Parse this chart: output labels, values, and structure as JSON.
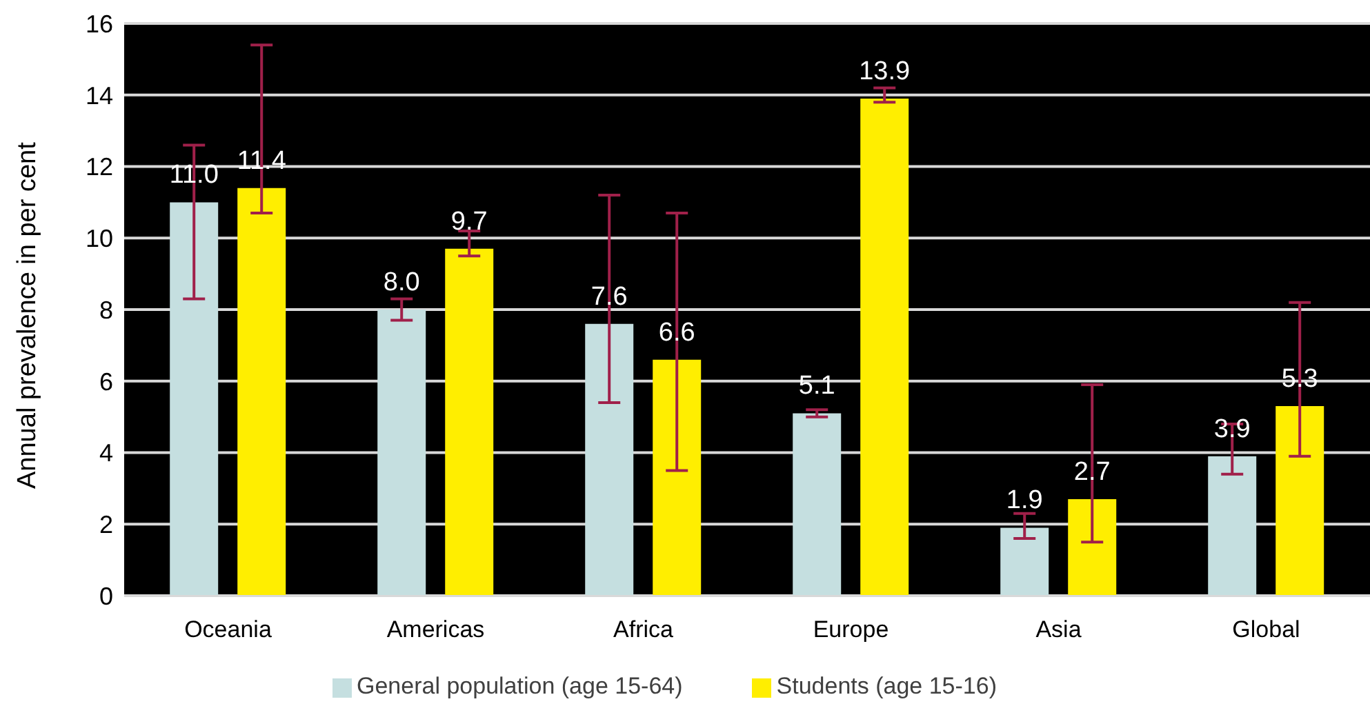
{
  "chart_data": {
    "type": "bar",
    "ylabel": "Annual prevalence in per cent",
    "categories": [
      "Oceania",
      "Americas",
      "Africa",
      "Europe",
      "Asia",
      "Global"
    ],
    "series": [
      {
        "name": "General population (age 15-64)",
        "color": "#c5dfe0",
        "values": [
          11.0,
          8.0,
          7.6,
          5.1,
          1.9,
          3.9
        ],
        "value_labels": [
          "11.0",
          "8.0",
          "7.6",
          "5.1",
          "1.9",
          "3.9"
        ],
        "errors": [
          [
            8.3,
            12.6
          ],
          [
            7.7,
            8.3
          ],
          [
            5.4,
            11.2
          ],
          [
            5.0,
            5.2
          ],
          [
            1.6,
            2.3
          ],
          [
            3.4,
            4.8
          ]
        ]
      },
      {
        "name": "Students (age 15-16)",
        "color": "#ffee00",
        "values": [
          11.4,
          9.7,
          6.6,
          13.9,
          2.7,
          5.3
        ],
        "value_labels": [
          "11.4",
          "9.7",
          "6.6",
          "13.9",
          "2.7",
          "5.3"
        ],
        "errors": [
          [
            10.7,
            15.4
          ],
          [
            9.5,
            10.2
          ],
          [
            3.5,
            10.7
          ],
          [
            13.8,
            14.2
          ],
          [
            1.5,
            5.9
          ],
          [
            3.9,
            8.2
          ]
        ]
      }
    ],
    "ylim": [
      0,
      16
    ],
    "yticks": [
      0,
      2,
      4,
      6,
      8,
      10,
      12,
      14,
      16
    ],
    "grid": "y",
    "legend": "bottom"
  }
}
